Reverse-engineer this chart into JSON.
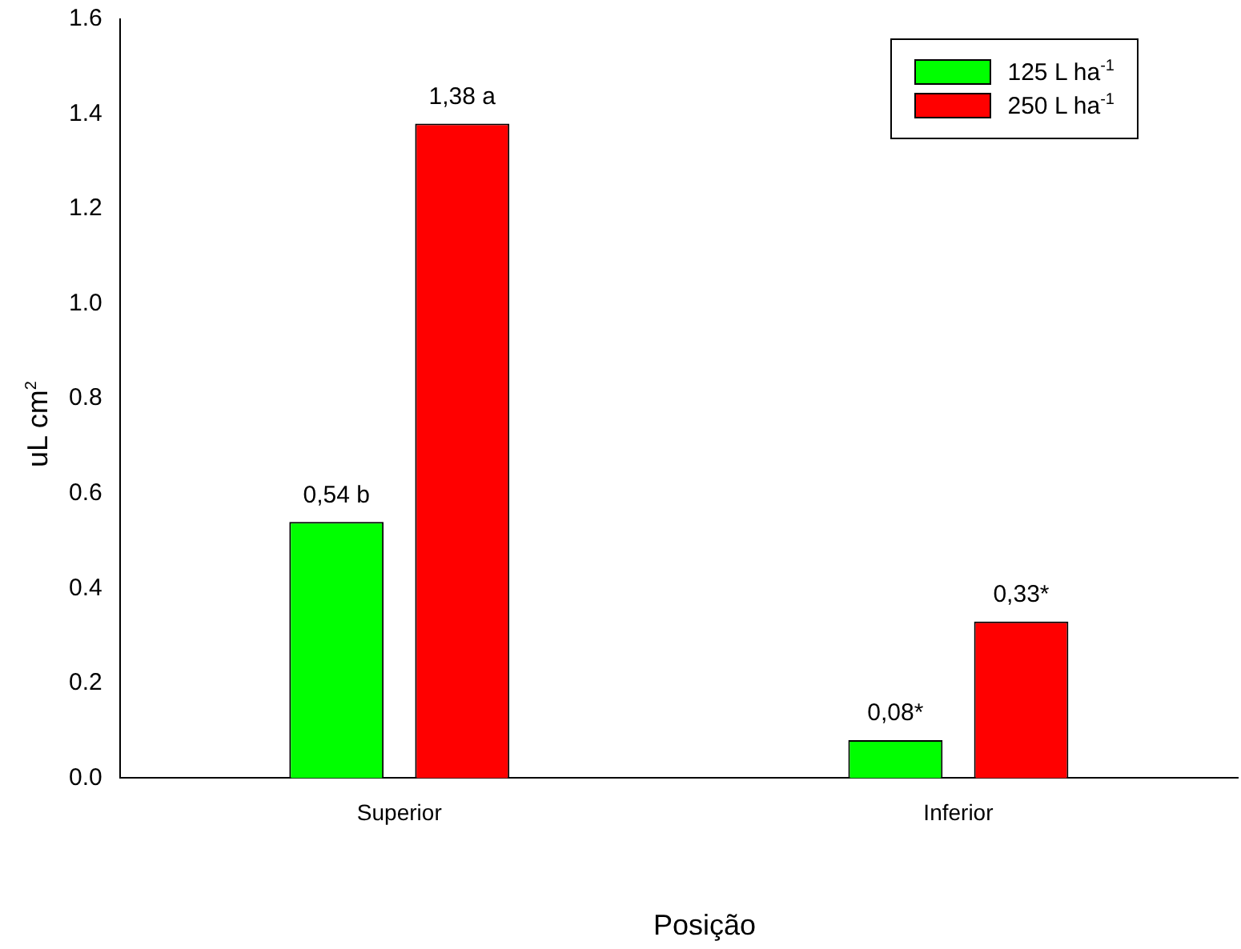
{
  "chart_data": {
    "type": "bar",
    "xlabel": "Posição",
    "ylabel": "uL cm$^{2}$",
    "categories": [
      "Superior",
      "Inferior"
    ],
    "series": [
      {
        "name": "125 L ha$^{-1}$",
        "color": "#00ff00",
        "values": [
          0.54,
          0.08
        ],
        "value_labels": [
          "0,54 b",
          "0,08*"
        ]
      },
      {
        "name": "250 L ha$^{-1}$",
        "color": "#ff0000",
        "values": [
          1.38,
          0.33
        ],
        "value_labels": [
          "1,38 a",
          "0,33*"
        ]
      }
    ],
    "ylim": [
      0,
      1.6
    ],
    "yticks": [
      {
        "value": 0,
        "label": "0.0"
      },
      0.2,
      0.4,
      0.6,
      0.8,
      {
        "value": 1,
        "label": "1.0"
      },
      1.2,
      1.4,
      1.6
    ],
    "grid": false,
    "legend": "top right"
  }
}
